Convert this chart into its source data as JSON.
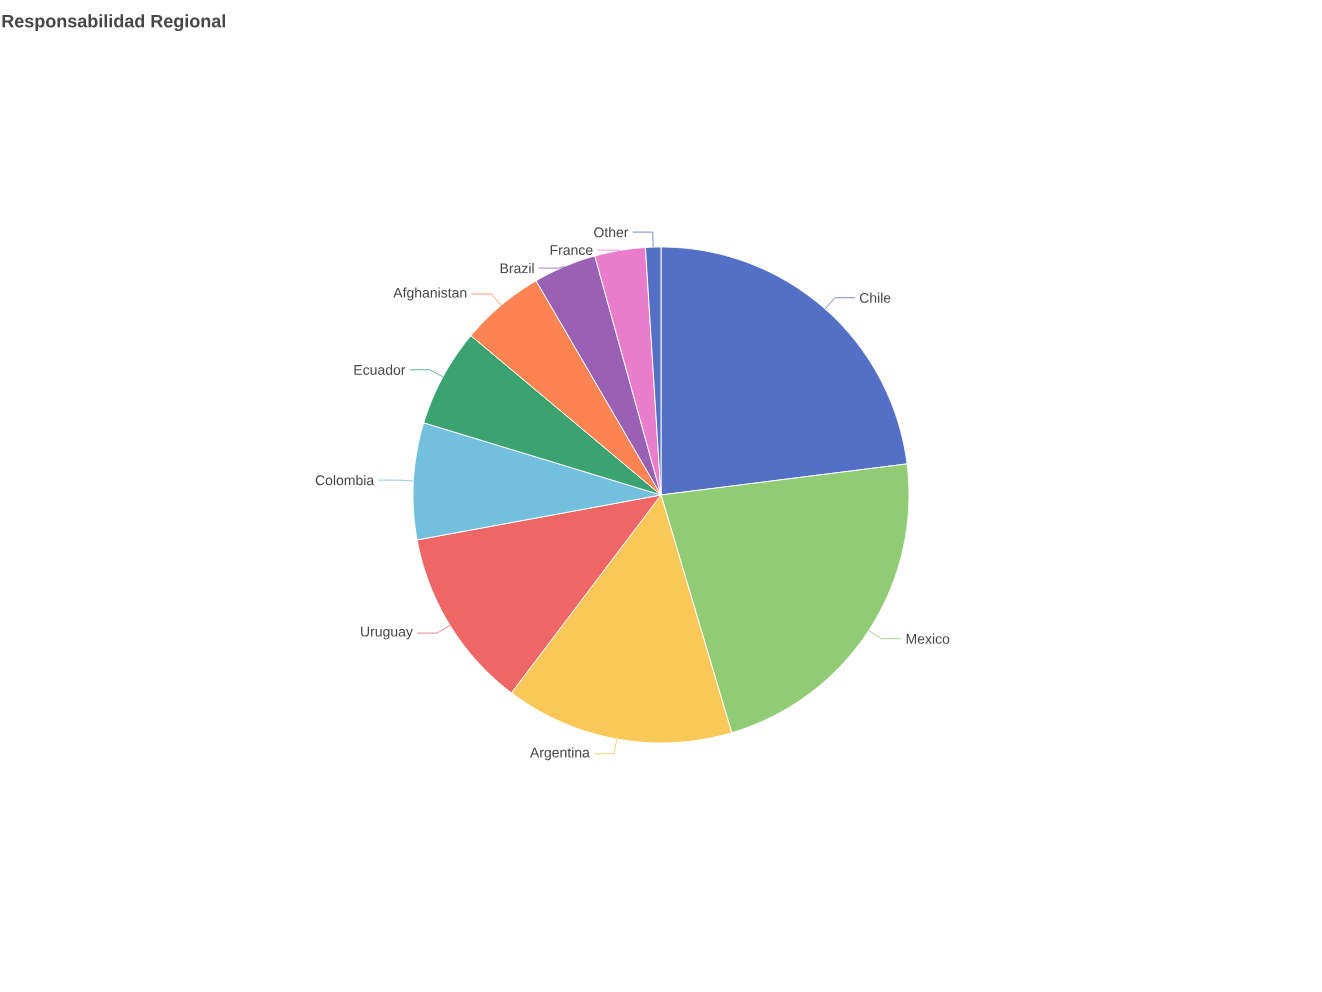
{
  "chart_data": {
    "type": "pie",
    "title": "Responsabilidad Regional",
    "categories": [
      "Chile",
      "Mexico",
      "Argentina",
      "Uruguay",
      "Colombia",
      "Ecuador",
      "Afghanistan",
      "Brazil",
      "France",
      "Other"
    ],
    "values": [
      23.0,
      22.4,
      14.9,
      11.8,
      7.6,
      6.4,
      5.5,
      4.1,
      3.3,
      1.0
    ],
    "colors": [
      "#5470c6",
      "#91cc75",
      "#fac858",
      "#ee6666",
      "#73c0de",
      "#3ba272",
      "#fc8452",
      "#9a60b4",
      "#ea7ccc",
      "#5470c6"
    ]
  }
}
